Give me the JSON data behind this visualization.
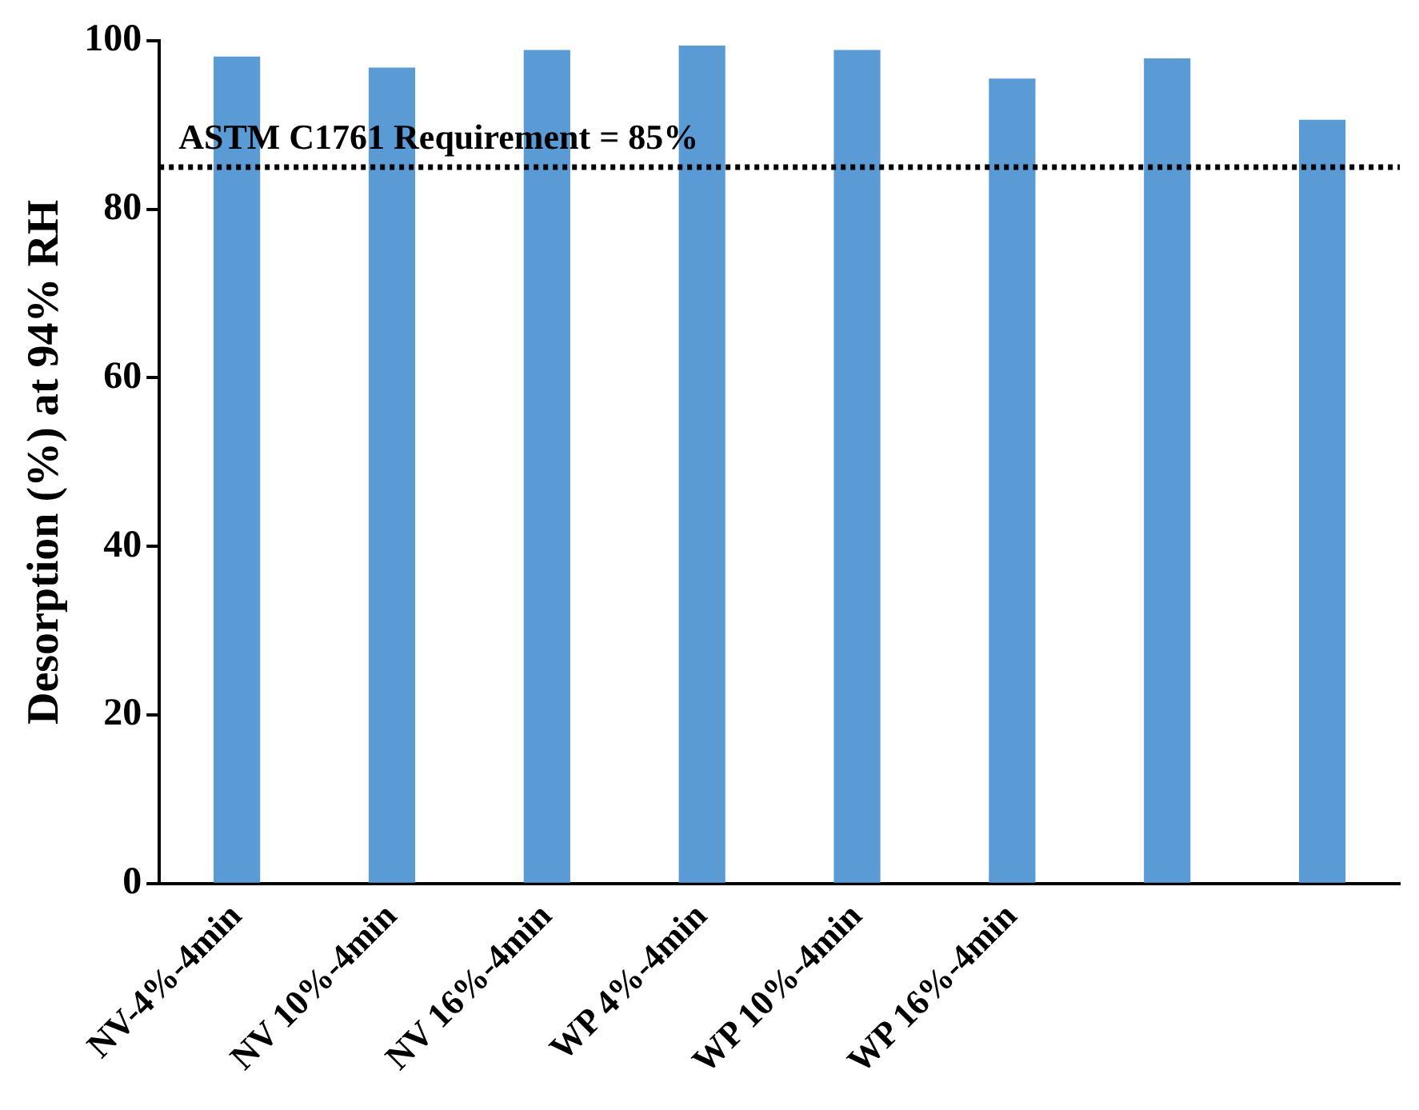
{
  "chart_data": {
    "type": "bar",
    "ylabel": "Desorption (%) at 94% RH",
    "categories": [
      "NV-4%-4min",
      "NV 10%-4min",
      "NV 16%-4min",
      "WP 4%-4min",
      "WP 10%-4min",
      "WP 16%-4min",
      null,
      null
    ],
    "values": [
      98.1,
      96.8,
      98.9,
      99.4,
      98.9,
      95.5,
      97.9,
      90.6
    ],
    "color": "#5b9bd5",
    "ylim": [
      0,
      100
    ],
    "yticks": [
      0,
      20,
      40,
      60,
      80,
      100
    ],
    "grid": false,
    "legend": false,
    "ref_lines": [
      {
        "axis": "y",
        "value": 85,
        "label": "ASTM C1761 Requirement = 85%",
        "color": "#000000",
        "line_style": "dotted"
      }
    ]
  }
}
